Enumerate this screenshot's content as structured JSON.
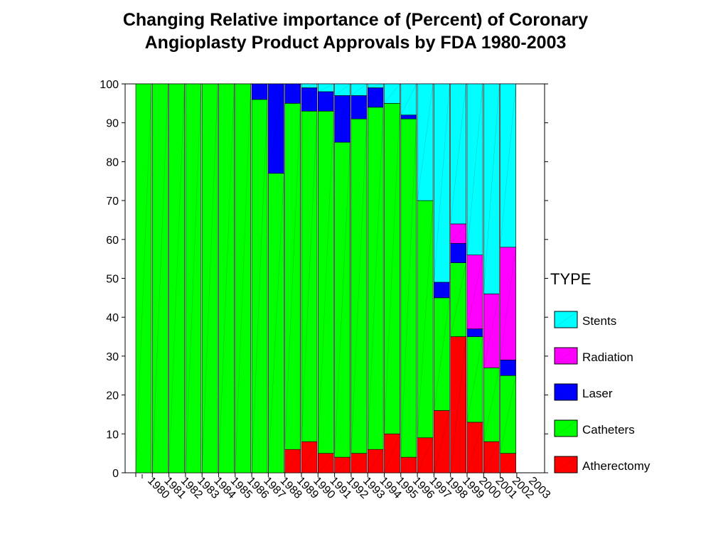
{
  "chart_data": {
    "type": "bar",
    "stacked": true,
    "title": "Changing Relative importance of (Percent) of Coronary Angioplasty Product Approvals by FDA 1980-2003",
    "title_lines": [
      "Changing Relative importance of (Percent) of Coronary",
      "Angioplasty Product Approvals by FDA 1980-2003"
    ],
    "xlabel": "",
    "ylabel": "",
    "ylim": [
      0,
      100
    ],
    "yticks": [
      0,
      10,
      20,
      30,
      40,
      50,
      60,
      70,
      80,
      90,
      100
    ],
    "grid": false,
    "legend_title": "TYPE",
    "legend_position": "right",
    "categories": [
      "1980",
      "1981",
      "1982",
      "1983",
      "1984",
      "1985",
      "1986",
      "1987",
      "1988",
      "1989",
      "1990",
      "1991",
      "1992",
      "1993",
      "1994",
      "1995",
      "1996",
      "1997",
      "1998",
      "1999",
      "2000",
      "2001",
      "2002",
      "2003"
    ],
    "series": [
      {
        "name": "Atherectomy",
        "color": "#ff0000",
        "values": [
          0,
          0,
          0,
          0,
          0,
          0,
          0,
          0,
          0,
          6,
          8,
          5,
          4,
          5,
          6,
          10,
          4,
          9,
          16,
          35,
          13,
          8,
          5,
          0
        ]
      },
      {
        "name": "Catheters",
        "color": "#00ff00",
        "values": [
          100,
          100,
          100,
          100,
          100,
          100,
          100,
          96,
          77,
          89,
          85,
          88,
          81,
          86,
          88,
          85,
          87,
          61,
          29,
          19,
          22,
          19,
          20,
          0
        ]
      },
      {
        "name": "Laser",
        "color": "#0000ff",
        "values": [
          0,
          0,
          0,
          0,
          0,
          0,
          0,
          4,
          23,
          5,
          6,
          5,
          12,
          6,
          5,
          0,
          1,
          0,
          4,
          5,
          2,
          0,
          4,
          0
        ]
      },
      {
        "name": "Radiation",
        "color": "#ff00ff",
        "values": [
          0,
          0,
          0,
          0,
          0,
          0,
          0,
          0,
          0,
          0,
          0,
          0,
          0,
          0,
          0,
          0,
          0,
          0,
          0,
          5,
          19,
          19,
          29,
          0
        ]
      },
      {
        "name": "Stents",
        "color": "#00ffff",
        "values": [
          0,
          0,
          0,
          0,
          0,
          0,
          0,
          0,
          0,
          0,
          1,
          2,
          3,
          3,
          1,
          5,
          8,
          30,
          51,
          36,
          44,
          54,
          42,
          0
        ]
      }
    ],
    "legend_order": [
      "Stents",
      "Radiation",
      "Laser",
      "Catheters",
      "Atherectomy"
    ]
  }
}
